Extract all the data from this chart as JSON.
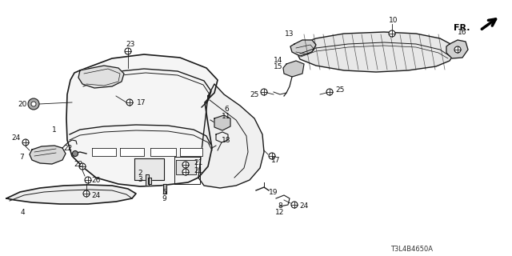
{
  "diagram_code": "T3L4B4650A",
  "bg_color": "#ffffff",
  "lc": "#1a1a1a",
  "fig_width": 6.4,
  "fig_height": 3.2,
  "dpi": 100
}
